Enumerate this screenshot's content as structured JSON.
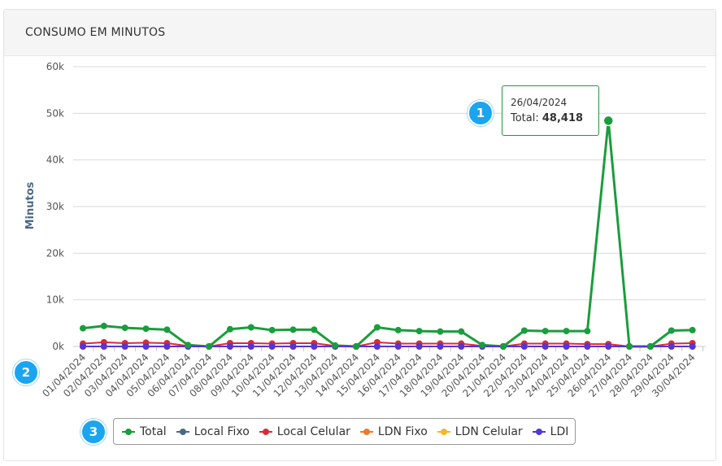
{
  "header": {
    "title": "CONSUMO EM MINUTOS"
  },
  "tooltip": {
    "date": "26/04/2024",
    "label": "Total:",
    "value": "48,418"
  },
  "badges": [
    "1",
    "2",
    "3"
  ],
  "chart_data": {
    "type": "line",
    "ylabel": "Minutos",
    "xlabel": "",
    "ylim": [
      0,
      60000
    ],
    "yticks": [
      {
        "value": 0,
        "label": "0k"
      },
      {
        "value": 10000,
        "label": "10k"
      },
      {
        "value": 20000,
        "label": "20k"
      },
      {
        "value": 30000,
        "label": "30k"
      },
      {
        "value": 40000,
        "label": "40k"
      },
      {
        "value": 50000,
        "label": "50k"
      },
      {
        "value": 60000,
        "label": "60k"
      }
    ],
    "grid": true,
    "legend": "bottom",
    "categories": [
      "01/04/2024",
      "02/04/2024",
      "03/04/2024",
      "04/04/2024",
      "05/04/2024",
      "06/04/2024",
      "07/04/2024",
      "08/04/2024",
      "09/04/2024",
      "10/04/2024",
      "11/04/2024",
      "12/04/2024",
      "13/04/2024",
      "14/04/2024",
      "15/04/2024",
      "16/04/2024",
      "17/04/2024",
      "18/04/2024",
      "19/04/2024",
      "20/04/2024",
      "21/04/2024",
      "22/04/2024",
      "23/04/2024",
      "24/04/2024",
      "25/04/2024",
      "26/04/2024",
      "27/04/2024",
      "28/04/2024",
      "29/04/2024",
      "30/04/2024"
    ],
    "series": [
      {
        "name": "Total",
        "color": "#1a9d3c",
        "values": [
          3900,
          4400,
          4000,
          3800,
          3600,
          300,
          0,
          3700,
          4100,
          3500,
          3600,
          3600,
          200,
          0,
          4100,
          3500,
          3300,
          3200,
          3200,
          300,
          0,
          3400,
          3300,
          3300,
          3300,
          48418,
          0,
          0,
          3400,
          3500
        ]
      },
      {
        "name": "Local Fixo",
        "color": "#4c6b80",
        "values": [
          0,
          0,
          0,
          0,
          0,
          0,
          0,
          0,
          0,
          0,
          0,
          0,
          0,
          0,
          0,
          0,
          0,
          0,
          0,
          0,
          0,
          0,
          0,
          0,
          0,
          0,
          0,
          0,
          0,
          0
        ]
      },
      {
        "name": "Local Celular",
        "color": "#d62c3a",
        "values": [
          600,
          900,
          700,
          800,
          700,
          100,
          0,
          700,
          700,
          600,
          700,
          700,
          100,
          0,
          900,
          600,
          600,
          600,
          600,
          100,
          0,
          600,
          600,
          600,
          500,
          500,
          0,
          0,
          600,
          700
        ]
      },
      {
        "name": "LDN Fixo",
        "color": "#ec7a2b",
        "values": [
          0,
          0,
          0,
          0,
          0,
          0,
          0,
          0,
          0,
          0,
          0,
          0,
          0,
          0,
          0,
          0,
          0,
          0,
          0,
          0,
          0,
          0,
          0,
          0,
          0,
          0,
          0,
          0,
          0,
          0
        ]
      },
      {
        "name": "LDN Celular",
        "color": "#f4b728",
        "values": [
          0,
          0,
          0,
          0,
          0,
          0,
          0,
          0,
          0,
          0,
          0,
          0,
          0,
          0,
          0,
          0,
          0,
          0,
          0,
          0,
          0,
          0,
          0,
          0,
          0,
          0,
          0,
          0,
          0,
          0
        ]
      },
      {
        "name": "LDI",
        "color": "#5535d4",
        "values": [
          0,
          0,
          0,
          0,
          0,
          0,
          0,
          0,
          0,
          0,
          0,
          0,
          0,
          0,
          0,
          0,
          0,
          0,
          0,
          0,
          0,
          0,
          0,
          0,
          0,
          0,
          0,
          0,
          0,
          0
        ]
      }
    ]
  }
}
